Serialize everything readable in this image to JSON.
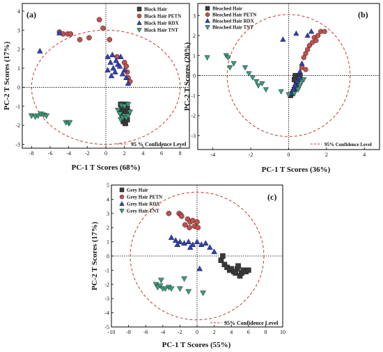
{
  "colors": {
    "black": "#3a3a3a",
    "petn": "#c0504d",
    "rdx": "#2f3fbf",
    "tnt": "#3a9e7a",
    "ellipse": "#c0392b"
  },
  "chart_data": [
    {
      "type": "scatter",
      "panel_label": "(a)",
      "xlabel": "PC-1 T Scores (68%)",
      "ylabel": "PC-2 T Scores (17%)",
      "xlim": [
        -9,
        9
      ],
      "ylim": [
        -3.2,
        4.4
      ],
      "xticks": [
        -8,
        -6,
        -4,
        -2,
        0,
        2,
        4,
        6,
        8
      ],
      "yticks": [
        -3,
        -2,
        -1,
        0,
        1,
        2,
        3,
        4
      ],
      "confidence_label": "95 % Confidence Level",
      "confidence_ellipse": {
        "cx": 0,
        "cy": 0,
        "rx": 8,
        "ry": 3.0
      },
      "legend_position": "top-right",
      "series": [
        {
          "name": "Black Hair",
          "marker": "square",
          "color_key": "black",
          "points": [
            [
              1.6,
              -0.9
            ],
            [
              1.8,
              -0.9
            ],
            [
              2.0,
              -0.95
            ],
            [
              2.2,
              -0.9
            ],
            [
              1.7,
              -1.1
            ],
            [
              1.9,
              -1.2
            ],
            [
              2.1,
              -1.3
            ],
            [
              2.3,
              -1.1
            ],
            [
              1.8,
              -1.5
            ],
            [
              2.0,
              -1.6
            ],
            [
              2.2,
              -1.5
            ],
            [
              2.4,
              -1.3
            ],
            [
              1.9,
              -1.8
            ],
            [
              2.1,
              -1.9
            ],
            [
              2.3,
              -1.7
            ],
            [
              1.6,
              -1.3
            ]
          ]
        },
        {
          "name": "Black Hair PETN",
          "marker": "circle",
          "color_key": "petn",
          "points": [
            [
              -5.0,
              2.9
            ],
            [
              -4.6,
              2.8
            ],
            [
              -4.1,
              2.8
            ],
            [
              -3.8,
              2.8
            ],
            [
              -2.8,
              2.5
            ],
            [
              -1.8,
              2.6
            ],
            [
              -0.7,
              3.55
            ],
            [
              -0.3,
              3.1
            ],
            [
              0.4,
              2.5
            ],
            [
              1.2,
              1.6
            ],
            [
              2.0,
              1.3
            ],
            [
              2.2,
              1.1
            ],
            [
              2.3,
              0.8
            ],
            [
              2.4,
              0.5
            ],
            [
              2.6,
              0.3
            ]
          ]
        },
        {
          "name": "Black Hair RDX",
          "marker": "triangle-up",
          "color_key": "rdx",
          "points": [
            [
              -7.1,
              1.9
            ],
            [
              -5.0,
              2.85
            ],
            [
              0.2,
              1.6
            ],
            [
              0.2,
              0.9
            ],
            [
              0.5,
              1.3
            ],
            [
              0.7,
              1.7
            ],
            [
              0.8,
              1.0
            ],
            [
              1.0,
              0.8
            ],
            [
              1.1,
              1.4
            ],
            [
              1.3,
              1.2
            ],
            [
              1.5,
              1.1
            ],
            [
              1.6,
              1.6
            ],
            [
              1.8,
              0.7
            ],
            [
              2.0,
              0.9
            ],
            [
              2.2,
              0.5
            ],
            [
              2.4,
              0.2
            ],
            [
              0.6,
              0.6
            ]
          ]
        },
        {
          "name": "Black Hair TNT",
          "marker": "triangle-down",
          "color_key": "tnt",
          "points": [
            [
              -8.0,
              -1.5
            ],
            [
              -7.6,
              -1.55
            ],
            [
              -7.3,
              -1.5
            ],
            [
              -7.0,
              -1.4
            ],
            [
              -6.7,
              -1.45
            ],
            [
              -6.4,
              -1.5
            ],
            [
              -4.3,
              -1.85
            ],
            [
              -4.0,
              -1.9
            ],
            [
              -3.9,
              -1.85
            ],
            [
              1.3,
              -1.2
            ],
            [
              1.5,
              -1.4
            ],
            [
              1.6,
              -1.7
            ],
            [
              1.8,
              -1.6
            ],
            [
              2.0,
              -1.5
            ],
            [
              2.2,
              -1.6
            ],
            [
              2.4,
              -1.5
            ],
            [
              2.6,
              -1.3
            ],
            [
              1.7,
              -0.95
            ],
            [
              2.0,
              -1.0
            ],
            [
              2.4,
              -0.9
            ]
          ]
        }
      ]
    },
    {
      "type": "scatter",
      "panel_label": "(b)",
      "xlabel": "PC-1 T Scores (36%)",
      "ylabel": "PC-2 T Scores (20%)",
      "xlim": [
        -4.8,
        4.8
      ],
      "ylim": [
        -3.7,
        3.6
      ],
      "xticks": [
        -4,
        -2,
        0,
        2,
        4
      ],
      "yticks": [
        -3,
        -2,
        -1,
        0,
        1,
        2,
        3
      ],
      "confidence_label": "95% Confidence Level",
      "confidence_ellipse": {
        "cx": 0,
        "cy": 0,
        "rx": 3.25,
        "ry": 3.05
      },
      "legend_position": "top-left",
      "series": [
        {
          "name": "Bleached Hair",
          "marker": "square",
          "color_key": "black",
          "points": [
            [
              0.1,
              -1.0
            ],
            [
              0.2,
              -0.9
            ],
            [
              0.25,
              -0.8
            ],
            [
              0.3,
              -0.7
            ],
            [
              0.35,
              -0.6
            ],
            [
              0.4,
              -0.45
            ],
            [
              0.45,
              -0.3
            ],
            [
              0.5,
              -0.2
            ],
            [
              0.55,
              -0.05
            ],
            [
              0.6,
              0.0
            ],
            [
              0.3,
              -0.2
            ],
            [
              0.35,
              0.0
            ]
          ]
        },
        {
          "name": "Bleached Hair PETN",
          "marker": "circle",
          "color_key": "petn",
          "points": [
            [
              0.9,
              1.1
            ],
            [
              1.0,
              1.3
            ],
            [
              1.1,
              1.5
            ],
            [
              1.25,
              1.65
            ],
            [
              1.35,
              1.9
            ],
            [
              1.45,
              1.75
            ],
            [
              1.55,
              2.0
            ],
            [
              1.7,
              2.2
            ],
            [
              1.9,
              2.2
            ],
            [
              0.8,
              0.9
            ],
            [
              0.7,
              0.4
            ],
            [
              0.9,
              0.3
            ]
          ]
        },
        {
          "name": "Bleached Hair RDX",
          "marker": "triangle-up",
          "color_key": "rdx",
          "points": [
            [
              -0.3,
              1.8
            ],
            [
              0.4,
              2.1
            ],
            [
              1.0,
              2.0
            ],
            [
              1.2,
              2.2
            ],
            [
              0.2,
              -0.9
            ],
            [
              0.25,
              -0.7
            ],
            [
              0.35,
              -0.5
            ],
            [
              0.45,
              -0.3
            ],
            [
              0.55,
              -0.1
            ],
            [
              0.6,
              0.2
            ],
            [
              0.7,
              0.6
            ]
          ]
        },
        {
          "name": "Bleached Hair TNT",
          "marker": "triangle-down",
          "color_key": "tnt",
          "points": [
            [
              -4.3,
              0.9
            ],
            [
              -3.3,
              1.0
            ],
            [
              -3.2,
              0.9
            ],
            [
              -2.9,
              0.6
            ],
            [
              -3.1,
              0.4
            ],
            [
              -2.3,
              0.4
            ],
            [
              -2.1,
              0.1
            ],
            [
              -1.9,
              -0.1
            ],
            [
              -1.7,
              -0.3
            ],
            [
              -1.6,
              -0.5
            ],
            [
              -1.4,
              -0.4
            ],
            [
              -1.2,
              -0.7
            ],
            [
              -0.4,
              -0.8
            ],
            [
              0.0,
              -0.95
            ],
            [
              0.3,
              -0.9
            ],
            [
              0.5,
              -0.7
            ],
            [
              0.6,
              -0.5
            ],
            [
              0.7,
              -0.3
            ],
            [
              0.8,
              -0.2
            ]
          ]
        }
      ]
    },
    {
      "type": "scatter",
      "panel_label": "(c)",
      "xlabel": "PC-1 T Scores (55%)",
      "ylabel": "PC-2 T Scores (17%)",
      "xlim": [
        -10,
        10
      ],
      "ylim": [
        -5,
        5
      ],
      "xticks": [
        -10,
        -8,
        -6,
        -4,
        -2,
        0,
        2,
        4,
        6,
        8,
        10
      ],
      "yticks": [
        -5,
        -4,
        -3,
        -2,
        -1,
        0,
        1,
        2,
        3,
        4,
        5
      ],
      "confidence_label": "95% Confidence Level",
      "confidence_ellipse": {
        "cx": 0,
        "cy": 0,
        "rx": 7.8,
        "ry": 4.5
      },
      "legend_position": "top-left",
      "series": [
        {
          "name": "Grey Hair",
          "marker": "square",
          "color_key": "black",
          "points": [
            [
              2.8,
              -0.3
            ],
            [
              3.2,
              -0.6
            ],
            [
              3.5,
              -0.8
            ],
            [
              3.8,
              -1.0
            ],
            [
              4.0,
              -0.9
            ],
            [
              4.3,
              -1.1
            ],
            [
              4.5,
              -1.2
            ],
            [
              4.7,
              -0.9
            ],
            [
              5.0,
              -1.4
            ],
            [
              5.2,
              -1.2
            ],
            [
              5.4,
              -1.0
            ],
            [
              5.7,
              -1.1
            ],
            [
              6.0,
              -1.0
            ],
            [
              4.8,
              -0.7
            ],
            [
              3.0,
              0.0
            ]
          ]
        },
        {
          "name": "Grey Hair PETN",
          "marker": "circle",
          "color_key": "petn",
          "points": [
            [
              -3.3,
              3.0
            ],
            [
              -2.1,
              3.0
            ],
            [
              -1.9,
              2.9
            ],
            [
              -1.8,
              2.8
            ],
            [
              -1.1,
              2.6
            ],
            [
              -0.8,
              2.4
            ],
            [
              -0.5,
              2.5
            ],
            [
              -0.3,
              2.1
            ],
            [
              0.0,
              2.4
            ],
            [
              -1.4,
              2.2
            ],
            [
              -0.9,
              2.0
            ],
            [
              0.1,
              2.0
            ]
          ]
        },
        {
          "name": "Grey Hair RDX",
          "marker": "triangle-up",
          "color_key": "rdx",
          "points": [
            [
              -3.0,
              1.3
            ],
            [
              -2.5,
              1.1
            ],
            [
              -2.0,
              1.0
            ],
            [
              -1.5,
              0.9
            ],
            [
              -1.0,
              1.0
            ],
            [
              -0.5,
              0.8
            ],
            [
              0.0,
              1.0
            ],
            [
              0.5,
              0.8
            ],
            [
              1.0,
              0.9
            ],
            [
              1.5,
              0.6
            ],
            [
              2.0,
              0.3
            ],
            [
              -2.3,
              0.8
            ],
            [
              -0.8,
              0.6
            ],
            [
              0.3,
              -0.9
            ]
          ]
        },
        {
          "name": "Grey Hair TNT",
          "marker": "triangle-down",
          "color_key": "tnt",
          "points": [
            [
              -4.8,
              -2.0
            ],
            [
              -4.6,
              -2.2
            ],
            [
              -4.3,
              -2.1
            ],
            [
              -4.0,
              -2.3
            ],
            [
              -3.7,
              -2.3
            ],
            [
              -3.3,
              -2.2
            ],
            [
              -3.0,
              -2.3
            ],
            [
              -2.0,
              -2.3
            ],
            [
              -1.0,
              -2.5
            ],
            [
              0.7,
              -2.6
            ],
            [
              -4.2,
              -1.7
            ],
            [
              -1.5,
              -1.6
            ]
          ]
        }
      ]
    }
  ]
}
